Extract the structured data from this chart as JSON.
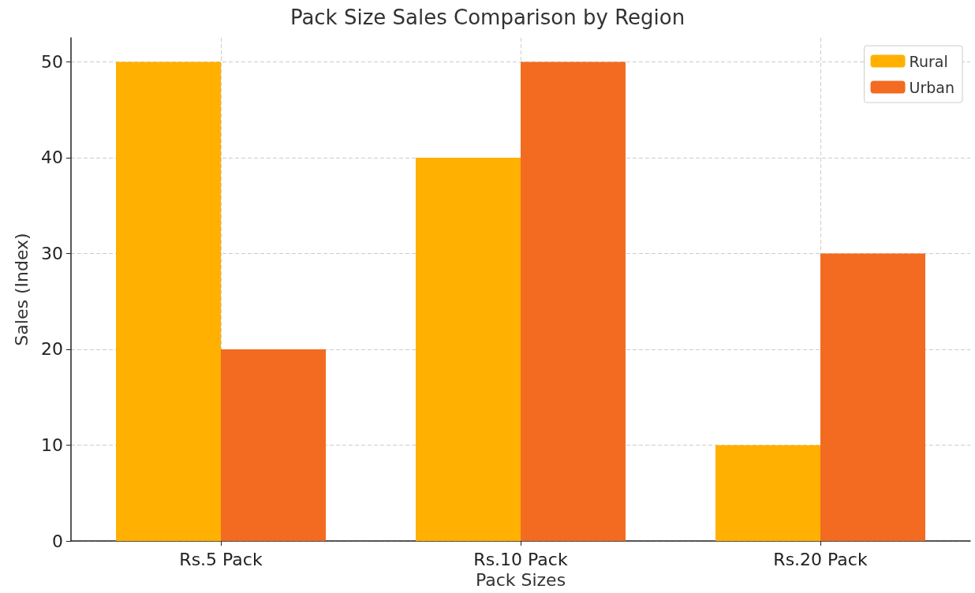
{
  "chart_data": {
    "type": "bar",
    "title": "Pack Size Sales Comparison by Region",
    "xlabel": "Pack Sizes",
    "ylabel": "Sales (Index)",
    "categories": [
      "Rs.5 Pack",
      "Rs.10 Pack",
      "Rs.20 Pack"
    ],
    "series": [
      {
        "name": "Rural",
        "color": "#ffb000",
        "values": [
          50,
          40,
          10
        ]
      },
      {
        "name": "Urban",
        "color": "#f26b21",
        "values": [
          20,
          50,
          30
        ]
      }
    ],
    "ylim": [
      0,
      52.5
    ],
    "yticks": [
      0,
      10,
      20,
      30,
      40,
      50
    ],
    "grid": true,
    "legend": "top right"
  }
}
